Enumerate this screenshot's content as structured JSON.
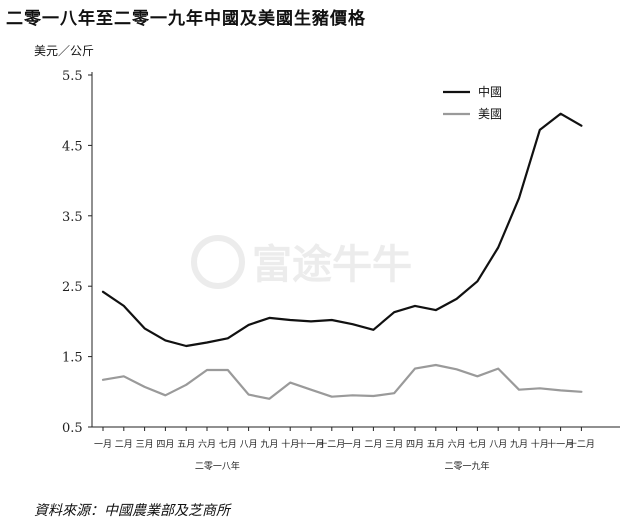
{
  "title": "二零一八年至二零一九年中國及美國生豬價格",
  "unit_label": "美元／公斤",
  "source": "資料來源：中國農業部及芝商所",
  "watermark": "富途牛牛",
  "colors": {
    "china": "#111111",
    "usa": "#9a9a9a",
    "axis": "#222222",
    "watermark": "#ececec"
  },
  "chart_data": {
    "type": "line",
    "title": "二零一八年至二零一九年中國及美國生豬價格",
    "ylabel": "美元／公斤",
    "ylim": [
      0.5,
      5.5
    ],
    "yticks": [
      "0.5",
      "1.5",
      "2.5",
      "3.5",
      "4.5",
      "5.5"
    ],
    "categories": [
      "一月",
      "二月",
      "三月",
      "四月",
      "五月",
      "六月",
      "七月",
      "八月",
      "九月",
      "十月",
      "十一月",
      "十二月",
      "一月",
      "二月",
      "三月",
      "四月",
      "五月",
      "六月",
      "七月",
      "八月",
      "九月",
      "十月",
      "十一月",
      "十二月"
    ],
    "year_groups": [
      {
        "label": "二零一八年",
        "start": 0,
        "end": 11
      },
      {
        "label": "二零一九年",
        "start": 12,
        "end": 23
      }
    ],
    "legend_position": "top-right",
    "grid": false,
    "series": [
      {
        "name": "中國",
        "values": [
          2.42,
          2.22,
          1.9,
          1.73,
          1.65,
          1.7,
          1.76,
          1.95,
          2.05,
          2.02,
          2.0,
          2.02,
          1.96,
          1.88,
          2.13,
          2.22,
          2.16,
          2.32,
          2.57,
          3.05,
          3.75,
          4.72,
          4.95,
          4.78
        ]
      },
      {
        "name": "美國",
        "values": [
          1.17,
          1.22,
          1.07,
          0.95,
          1.1,
          1.31,
          1.31,
          0.96,
          0.9,
          1.13,
          1.03,
          0.93,
          0.95,
          0.94,
          0.98,
          1.33,
          1.38,
          1.32,
          1.22,
          1.33,
          1.03,
          1.05,
          1.02,
          1.0
        ]
      }
    ]
  }
}
